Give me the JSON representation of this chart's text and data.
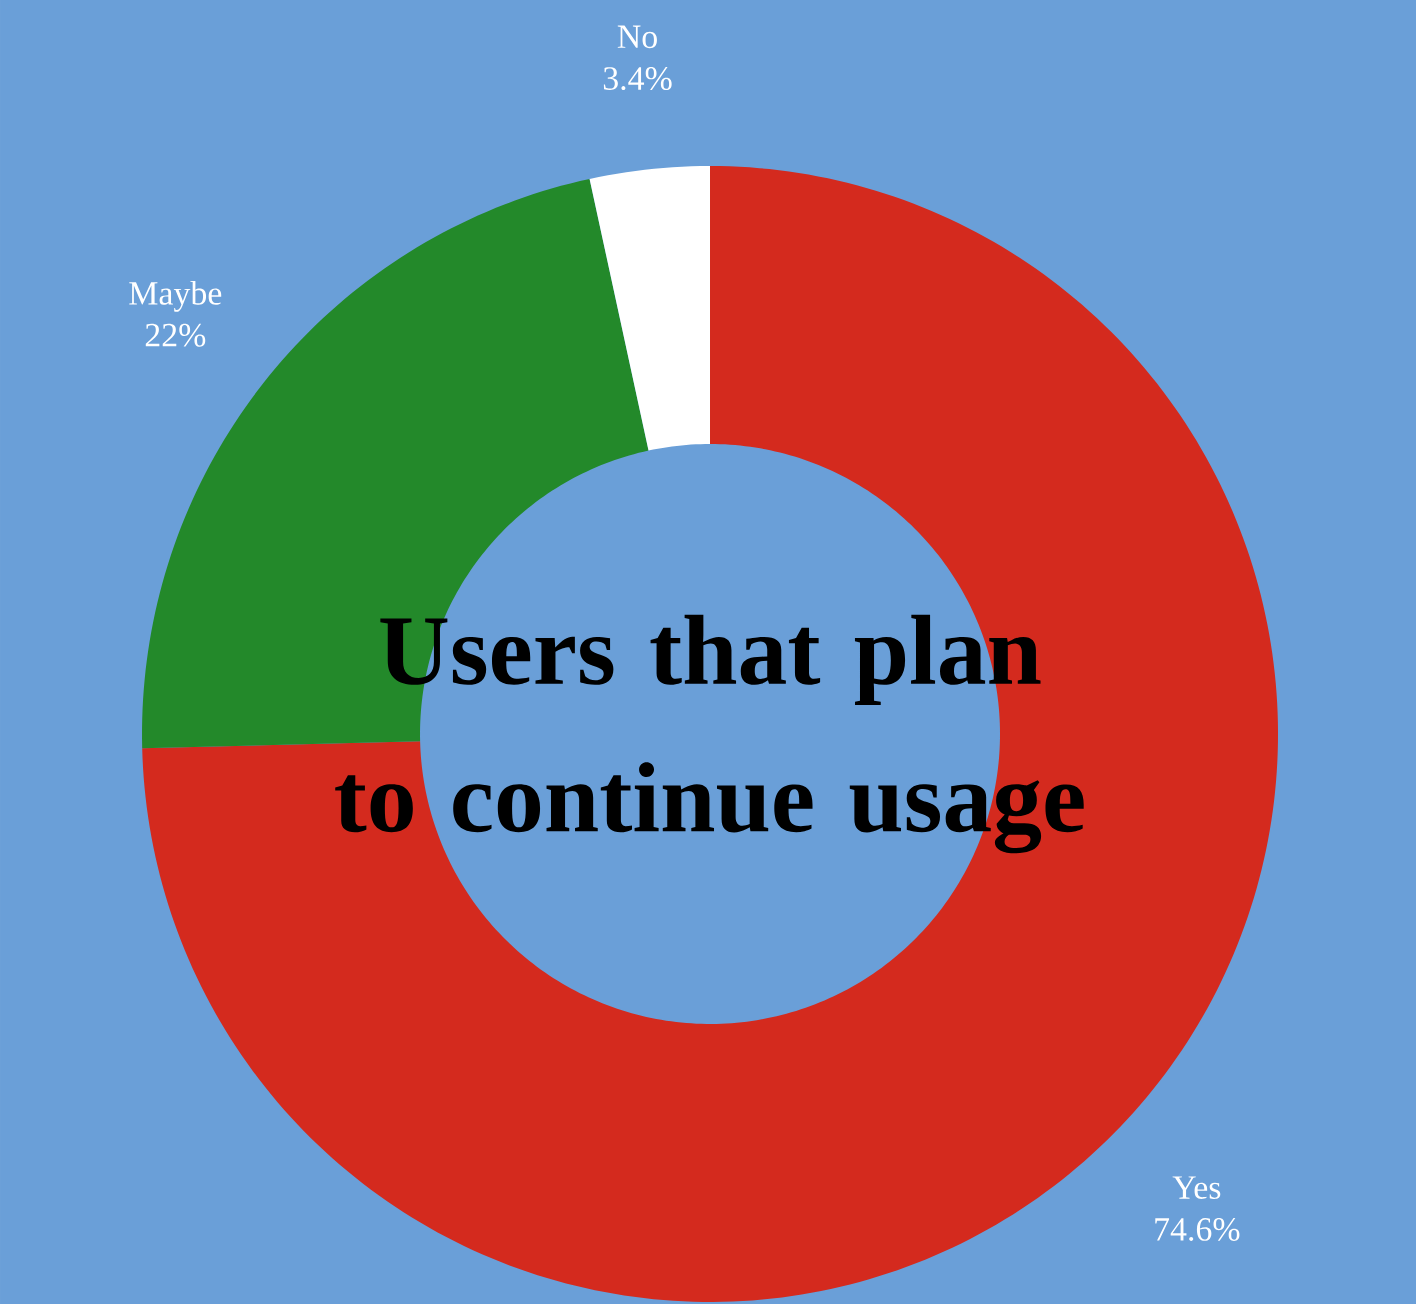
{
  "chart_data": {
    "type": "donut",
    "title": "Users that plan to continue usage",
    "categories": [
      "Yes",
      "Maybe",
      "No"
    ],
    "values": [
      74.6,
      22,
      3.4
    ],
    "value_labels": [
      "74.6%",
      "22%",
      "3.4%"
    ],
    "colors": [
      "#d42a1e",
      "#23892a",
      "#ffffff"
    ]
  }
}
